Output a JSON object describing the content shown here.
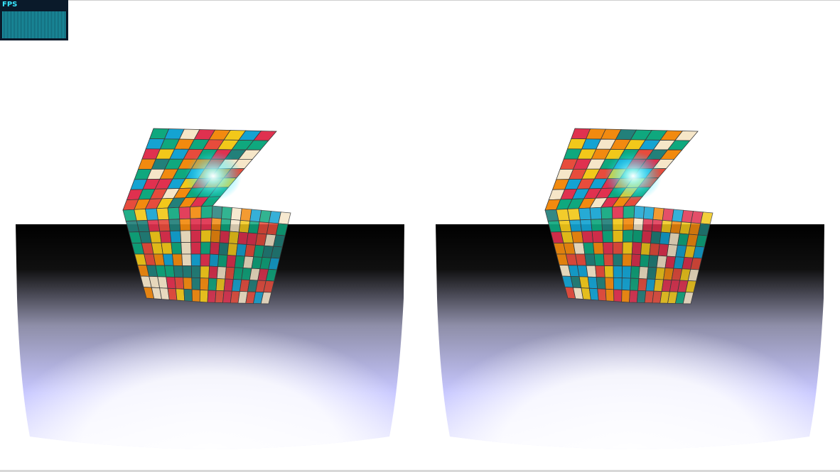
{
  "stats": {
    "fps_label": "FPS",
    "fps_values": [
      60,
      60,
      60,
      60,
      60,
      60,
      60,
      60,
      60,
      60,
      60,
      60,
      60,
      60,
      60,
      60,
      60,
      60,
      60,
      60
    ]
  },
  "scene": {
    "views": [
      "left-eye",
      "right-eye"
    ],
    "palette": [
      "#e0314f",
      "#f28a0f",
      "#f2c81a",
      "#0fa87e",
      "#14a3d2",
      "#f6e6c8",
      "#22807a",
      "#e74c3c"
    ],
    "floor_top_color": "#000000",
    "floor_bottom_color": "#c9c9ff",
    "background_color": "#ffffff"
  }
}
